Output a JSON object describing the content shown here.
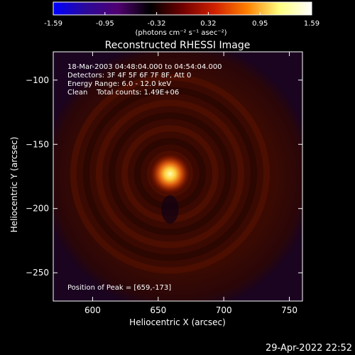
{
  "chart_data": {
    "type": "heatmap",
    "title": "Reconstructed RHESSI Image",
    "xlabel": "Heliocentric X (arcsec)",
    "ylabel": "Heliocentric Y (arcsec)",
    "xlim": [
      570,
      760
    ],
    "ylim": [
      -272,
      -78
    ],
    "x_ticks": [
      600,
      650,
      700,
      750
    ],
    "y_ticks": [
      -100,
      -150,
      -200,
      -250
    ],
    "colorbar": {
      "min": -1.59,
      "max": 1.59,
      "ticks": [
        "-1.59",
        "-0.95",
        "-0.32",
        "0.32",
        "0.95",
        "1.59"
      ],
      "units_text": "(photons cm⁻² s⁻¹ asec⁻²)",
      "colors": [
        "#0000ff",
        "#2a0a9a",
        "#500070",
        "#000000",
        "#700000",
        "#d02000",
        "#ff8000",
        "#ffff80",
        "#ffffff"
      ]
    },
    "annotations": [
      "18-Mar-2003 04:48:04.000 to 04:54:04.000",
      "Detectors: 3F 4F 5F 6F 7F 8F, Att 0",
      "Energy Range: 6.0 - 12.0 keV",
      "Clean    Total counts: 1.49E+06"
    ],
    "peak_text": "Position of Peak = [659,-173]",
    "peak": {
      "x": 659,
      "y": -173,
      "value": 1.59
    },
    "background_level": 0.15
  },
  "timestamp": "29-Apr-2022 22:52"
}
